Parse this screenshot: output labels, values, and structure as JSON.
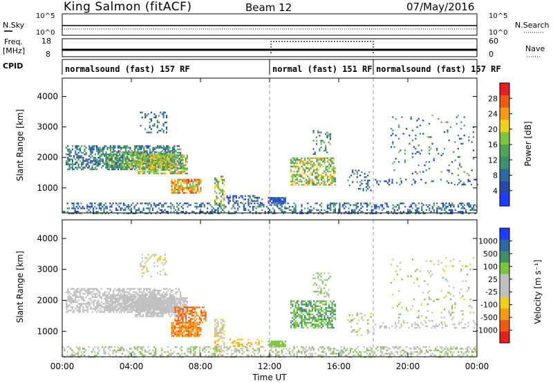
{
  "header": {
    "station": "King Salmon (fitACF)",
    "beam": "Beam 12",
    "date": "07/May/2016"
  },
  "top_panels": {
    "nsky_label": "N.Sky",
    "nsky_ticks": [
      "10^5",
      "10^0"
    ],
    "nsearch_label": "N.Search",
    "nsearch_ticks": [
      "10^5",
      "10^0"
    ],
    "freq_label_1": "Freq.",
    "freq_label_2": "[MHz]",
    "freq_ticks": [
      "18",
      "8"
    ],
    "nave_label": "Nave",
    "nave_ticks": [
      "60",
      "0"
    ],
    "cpid_label": "CPID",
    "cpid_segments": [
      {
        "label": "normalsound (fast) 157 RF",
        "start_hour": 0,
        "end_hour": 12
      },
      {
        "label": "normal (fast) 151 RF",
        "start_hour": 12,
        "end_hour": 18
      },
      {
        "label": "normalsound (fast) 157 RF",
        "start_hour": 18,
        "end_hour": 24
      }
    ]
  },
  "x_axis": {
    "title": "Time UT",
    "tick_labels": [
      "00:00",
      "04:00",
      "08:00",
      "12:00",
      "16:00",
      "20:00",
      "00:00"
    ],
    "tick_hours": [
      0,
      4,
      8,
      12,
      16,
      20,
      24
    ]
  },
  "power_panel": {
    "ylabel": "Slant Range [km]",
    "y_tick_labels": [
      "4000",
      "3000",
      "2000",
      "1000"
    ],
    "colorbar_title": "Power [dB]",
    "colorbar_labels": [
      "28",
      "24",
      "20",
      "16",
      "12",
      "8",
      "4"
    ]
  },
  "velocity_panel": {
    "ylabel": "Slant Range [km]",
    "y_tick_labels": [
      "4000",
      "3000",
      "2000",
      "1000"
    ],
    "colorbar_title": "Velocity [m s⁻¹]",
    "colorbar_labels": [
      "1000",
      "500",
      "100",
      "25",
      "-25",
      "-100",
      "-500",
      "-1000"
    ]
  },
  "chart_data": [
    {
      "type": "heatmap",
      "name": "power",
      "xlabel": "Time UT",
      "ylabel": "Slant Range [km]",
      "xlim_hours": [
        0,
        24
      ],
      "ylim_km": [
        180,
        4600
      ],
      "colorbar": "Power [dB]",
      "colorbar_range": [
        0,
        30
      ],
      "colors": [
        "#1e3cff",
        "#2847a8",
        "#2e6aa0",
        "#3f8f6a",
        "#4fa35a",
        "#7cc43c",
        "#f0d21e",
        "#f59a14",
        "#ee5a14",
        "#e61e1e"
      ],
      "regions": [
        {
          "t0": 0.2,
          "t1": 6.8,
          "r0": 1600,
          "r1": 2400,
          "intensity": 0.3,
          "density": 0.55
        },
        {
          "t0": 2.5,
          "t1": 6.5,
          "r0": 1700,
          "r1": 2200,
          "intensity": 0.45,
          "density": 0.75
        },
        {
          "t0": 4.2,
          "t1": 7.2,
          "r0": 1500,
          "r1": 2100,
          "intensity": 0.55,
          "density": 0.7
        },
        {
          "t0": 6.3,
          "t1": 8.0,
          "r0": 850,
          "r1": 1300,
          "intensity": 0.7,
          "density": 0.8
        },
        {
          "t0": 4.5,
          "t1": 6.0,
          "r0": 2800,
          "r1": 3500,
          "intensity": 0.25,
          "density": 0.2
        },
        {
          "t0": 8.8,
          "t1": 9.4,
          "r0": 350,
          "r1": 1400,
          "intensity": 0.55,
          "density": 0.5
        },
        {
          "t0": 9.5,
          "t1": 11.6,
          "r0": 500,
          "r1": 760,
          "intensity": 0.2,
          "density": 0.35
        },
        {
          "t0": 11.9,
          "t1": 12.9,
          "r0": 530,
          "r1": 700,
          "intensity": 0.15,
          "density": 0.8
        },
        {
          "t0": 13.2,
          "t1": 15.8,
          "r0": 1100,
          "r1": 2000,
          "intensity": 0.55,
          "density": 0.55
        },
        {
          "t0": 14.5,
          "t1": 15.5,
          "r0": 2100,
          "r1": 2900,
          "intensity": 0.35,
          "density": 0.2
        },
        {
          "t0": 16.5,
          "t1": 18.0,
          "r0": 900,
          "r1": 1600,
          "intensity": 0.25,
          "density": 0.15
        },
        {
          "t0": 18.0,
          "t1": 24.0,
          "r0": 1100,
          "r1": 1300,
          "intensity": 0.2,
          "density": 0.2
        },
        {
          "t0": 19.0,
          "t1": 23.8,
          "r0": 1300,
          "r1": 3400,
          "intensity": 0.3,
          "density": 0.06
        },
        {
          "t0": 0.0,
          "t1": 24.0,
          "r0": 180,
          "r1": 520,
          "intensity": 0.25,
          "density": 0.35
        }
      ]
    },
    {
      "type": "heatmap",
      "name": "velocity",
      "xlabel": "Time UT",
      "ylabel": "Slant Range [km]",
      "xlim_hours": [
        0,
        24
      ],
      "ylim_km": [
        180,
        4600
      ],
      "colorbar": "Velocity [m s⁻¹]",
      "colorbar_range": [
        -1000,
        1000
      ],
      "colors": [
        "#e61e1e",
        "#ee5a14",
        "#f59a14",
        "#f0d21e",
        "#c0c0c0",
        "#c0c0c0",
        "#7cc43c",
        "#3f8f6a",
        "#2e6aa0",
        "#1e3cff"
      ],
      "regions": [
        {
          "t0": 0.2,
          "t1": 6.8,
          "r0": 1600,
          "r1": 2400,
          "value": 0.5,
          "spread": 0.08,
          "density": 0.55
        },
        {
          "t0": 2.5,
          "t1": 6.5,
          "r0": 1700,
          "r1": 2200,
          "value": 0.48,
          "spread": 0.06,
          "density": 0.75
        },
        {
          "t0": 4.2,
          "t1": 7.2,
          "r0": 1500,
          "r1": 2100,
          "value": 0.47,
          "spread": 0.06,
          "density": 0.7
        },
        {
          "t0": 6.5,
          "t1": 8.3,
          "r0": 1300,
          "r1": 1800,
          "value": 0.18,
          "spread": 0.08,
          "density": 0.55
        },
        {
          "t0": 6.3,
          "t1": 8.0,
          "r0": 850,
          "r1": 1300,
          "value": 0.22,
          "spread": 0.05,
          "density": 0.8
        },
        {
          "t0": 4.5,
          "t1": 6.0,
          "r0": 2800,
          "r1": 3500,
          "value": 0.45,
          "spread": 0.15,
          "density": 0.2
        },
        {
          "t0": 8.8,
          "t1": 9.4,
          "r0": 350,
          "r1": 1400,
          "value": 0.42,
          "spread": 0.15,
          "density": 0.5
        },
        {
          "t0": 9.5,
          "t1": 11.6,
          "r0": 500,
          "r1": 760,
          "value": 0.32,
          "spread": 0.05,
          "density": 0.35
        },
        {
          "t0": 11.9,
          "t1": 12.9,
          "r0": 530,
          "r1": 700,
          "value": 0.65,
          "spread": 0.03,
          "density": 0.8
        },
        {
          "t0": 13.2,
          "t1": 15.8,
          "r0": 1100,
          "r1": 2000,
          "value": 0.7,
          "spread": 0.05,
          "density": 0.55
        },
        {
          "t0": 14.5,
          "t1": 15.5,
          "r0": 2100,
          "r1": 2900,
          "value": 0.55,
          "spread": 0.15,
          "density": 0.2
        },
        {
          "t0": 16.5,
          "t1": 18.0,
          "r0": 900,
          "r1": 1600,
          "value": 0.5,
          "spread": 0.15,
          "density": 0.15
        },
        {
          "t0": 18.0,
          "t1": 24.0,
          "r0": 1100,
          "r1": 1300,
          "value": 0.5,
          "spread": 0.1,
          "density": 0.2
        },
        {
          "t0": 19.0,
          "t1": 23.8,
          "r0": 1300,
          "r1": 3400,
          "value": 0.5,
          "spread": 0.2,
          "density": 0.06
        },
        {
          "t0": 0.0,
          "t1": 24.0,
          "r0": 180,
          "r1": 520,
          "value": 0.55,
          "spread": 0.15,
          "density": 0.35
        }
      ]
    }
  ]
}
